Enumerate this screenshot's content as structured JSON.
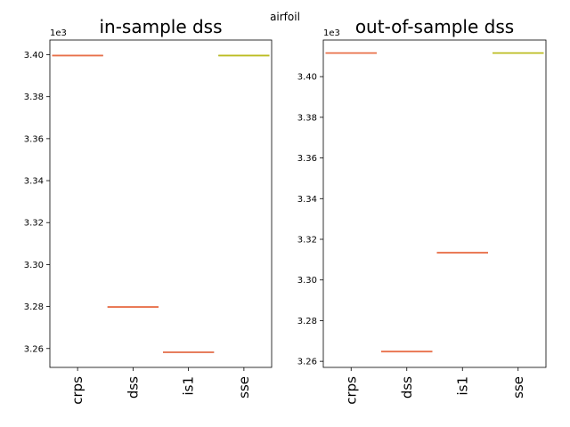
{
  "suptitle": "airfoil",
  "chart_data": [
    {
      "type": "box",
      "title": "in-sample dss",
      "categories": [
        "crps",
        "dss",
        "is1",
        "sse"
      ],
      "values": [
        3399.6,
        3279.8,
        3258.2,
        3399.6
      ],
      "ylim": [
        3251,
        3407
      ],
      "yticks": [
        3260,
        3280,
        3300,
        3320,
        3340,
        3360,
        3380,
        3400
      ],
      "ytick_labels": [
        "3.26",
        "3.28",
        "3.30",
        "3.32",
        "3.34",
        "3.36",
        "3.38",
        "3.40"
      ],
      "offset_label": "1e3",
      "box_color": "#4c72b0",
      "median_colors": [
        "#e8704a",
        "#e8704a",
        "#e8704a",
        "#bcbd22"
      ]
    },
    {
      "type": "box",
      "title": "out-of-sample dss",
      "categories": [
        "crps",
        "dss",
        "is1",
        "sse"
      ],
      "values": [
        3411.6,
        3264.8,
        3313.4,
        3411.6
      ],
      "ylim": [
        3257,
        3418
      ],
      "yticks": [
        3260,
        3280,
        3300,
        3320,
        3340,
        3360,
        3380,
        3400
      ],
      "ytick_labels": [
        "3.26",
        "3.28",
        "3.30",
        "3.32",
        "3.34",
        "3.36",
        "3.38",
        "3.40"
      ],
      "offset_label": "1e3",
      "box_color": "#4c72b0",
      "median_colors": [
        "#e8704a",
        "#e8704a",
        "#e8704a",
        "#bcbd22"
      ]
    }
  ]
}
